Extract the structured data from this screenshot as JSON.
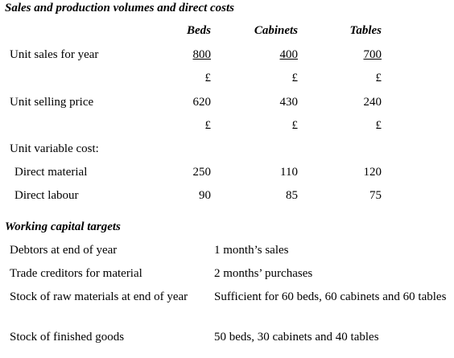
{
  "title": "Sales and production volumes and direct costs",
  "sales_table": {
    "columns": [
      "Beds",
      "Cabinets",
      "Tables"
    ],
    "rows": [
      {
        "label": "Unit sales for year",
        "cells": [
          800,
          400,
          700
        ]
      },
      {
        "cells": [
          "£",
          "£",
          "£"
        ]
      },
      {
        "label": "Unit selling price",
        "cells": [
          620,
          430,
          240
        ]
      },
      {
        "cells": [
          "£",
          "£",
          "£"
        ]
      },
      {
        "label": "Unit variable cost:"
      },
      {
        "label": "Direct material",
        "cells": [
          250,
          110,
          120
        ]
      },
      {
        "label": "Direct labour",
        "cells": [
          90,
          85,
          75
        ]
      }
    ]
  },
  "working_capital": {
    "title": "Working capital targets",
    "rows": [
      [
        "Debtors at end of year",
        "1 month’s sales"
      ],
      [
        "Trade creditors for material",
        "2 months’ purchases"
      ],
      [
        "Stock of raw materials at end of year",
        "Sufficient for 60 beds, 60 cabinets and 60 tables"
      ],
      [
        "Stock of finished goods",
        "50 beds, 30 cabinets and 40 tables"
      ]
    ]
  }
}
